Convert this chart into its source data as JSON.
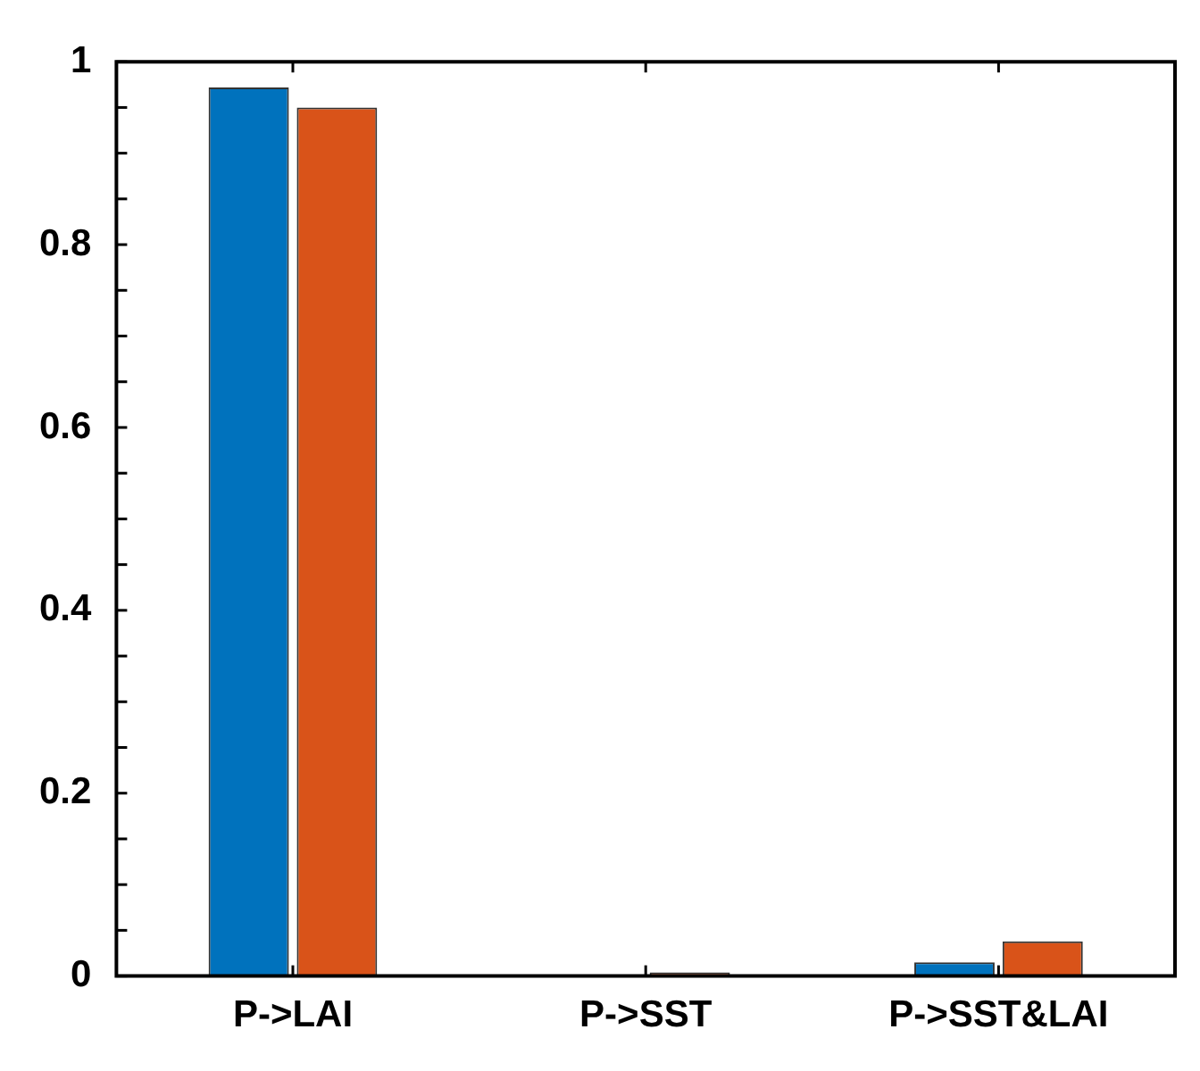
{
  "chart_data": {
    "type": "bar",
    "categories": [
      "P->LAI",
      "P->SST",
      "P->SST&LAI"
    ],
    "series": [
      {
        "color": "#0072bd",
        "values": [
          0.972,
          0,
          0.015
        ]
      },
      {
        "color": "#d95319",
        "values": [
          0.95,
          0.004,
          0.038
        ]
      }
    ],
    "ylim": [
      0,
      1
    ],
    "yticks": [
      0,
      {
        "value": 0.05,
        "label": null
      },
      {
        "value": 0.1,
        "label": null
      },
      {
        "value": 0.15,
        "label": null
      },
      0.2,
      {
        "value": 0.25,
        "label": null
      },
      {
        "value": 0.3,
        "label": null
      },
      {
        "value": 0.35,
        "label": null
      },
      0.4,
      {
        "value": 0.45,
        "label": null
      },
      {
        "value": 0.5,
        "label": null
      },
      {
        "value": 0.55,
        "label": null
      },
      0.6,
      {
        "value": 0.65,
        "label": null
      },
      {
        "value": 0.7,
        "label": null
      },
      {
        "value": 0.75,
        "label": null
      },
      0.8,
      {
        "value": 0.85,
        "label": null
      },
      {
        "value": 0.9,
        "label": null
      },
      {
        "value": 0.95,
        "label": null
      },
      1
    ],
    "grid": false,
    "legend": false
  }
}
